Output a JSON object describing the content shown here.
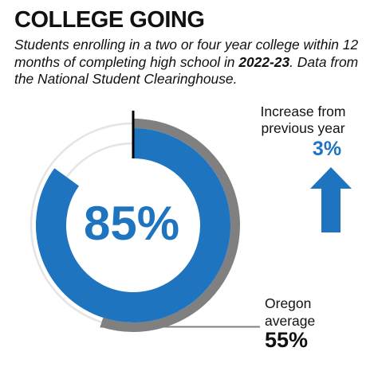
{
  "title": "COLLEGE GOING",
  "subtitle": {
    "prefix": "Students enrolling in a two or four year college within 12 months of completing high school in ",
    "year": "2022-23",
    "suffix": ". Data from the National Student Clearinghouse."
  },
  "increase": {
    "label": "Increase from previous year",
    "value": "3%",
    "direction": "up",
    "icon": "up-arrow-icon"
  },
  "colors": {
    "primary": "#1f74c0",
    "average": "#808080",
    "track": "#e4e4e4",
    "marker": "#000000"
  },
  "chart_data": {
    "type": "donut",
    "series": [
      {
        "value": 85,
        "display": "85%"
      },
      {
        "name": "Oregon average",
        "value": 55,
        "display": "55%"
      }
    ],
    "max": 100,
    "center_label": "85%",
    "average_label": "Oregon average",
    "average_value": "55%"
  }
}
